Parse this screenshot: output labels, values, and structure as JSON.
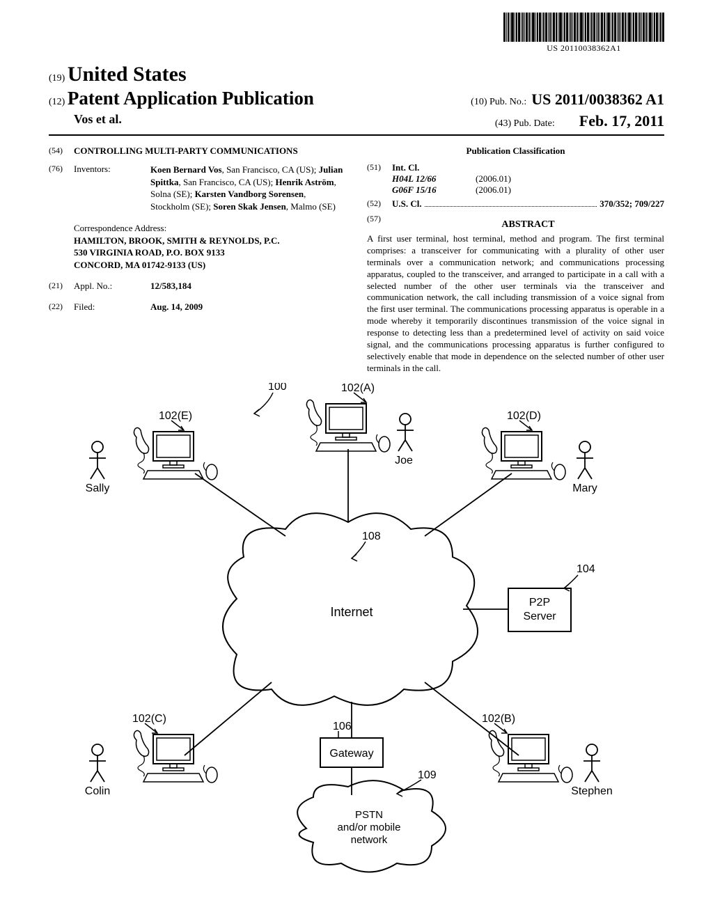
{
  "barcode_text": "US 20110038362A1",
  "country": "United States",
  "country_code": "(19)",
  "pub_type_code": "(12)",
  "pub_type": "Patent Application Publication",
  "authors": "Vos et al.",
  "pub_no_code": "(10)",
  "pub_no_label": "Pub. No.:",
  "pub_no": "US 2011/0038362 A1",
  "pub_date_code": "(43)",
  "pub_date_label": "Pub. Date:",
  "pub_date": "Feb. 17, 2011",
  "title_code": "(54)",
  "title": "CONTROLLING MULTI-PARTY COMMUNICATIONS",
  "inventors_code": "(76)",
  "inventors_label": "Inventors:",
  "inventors_html": "<b>Koen Bernard Vos</b>, San Francisco, CA (US); <b>Julian Spittka</b>, San Francisco, CA (US); <b>Henrik Aström</b>, Solna (SE); <b>Karsten Vandborg Sorensen</b>, Stockholm (SE); <b>Soren Skak Jensen</b>, Malmo (SE)",
  "corr_label": "Correspondence Address:",
  "corr_name": "HAMILTON, BROOK, SMITH & REYNOLDS, P.C.",
  "corr_addr1": "530 VIRGINIA ROAD, P.O. BOX 9133",
  "corr_addr2": "CONCORD, MA 01742-9133 (US)",
  "appl_code": "(21)",
  "appl_label": "Appl. No.:",
  "appl_no": "12/583,184",
  "filed_code": "(22)",
  "filed_label": "Filed:",
  "filed_date": "Aug. 14, 2009",
  "class_header": "Publication Classification",
  "intcl_code": "(51)",
  "intcl_label": "Int. Cl.",
  "intcl": [
    {
      "code": "H04L 12/66",
      "year": "(2006.01)"
    },
    {
      "code": "G06F 15/16",
      "year": "(2006.01)"
    }
  ],
  "uscl_code": "(52)",
  "uscl_label": "U.S. Cl.",
  "uscl_val": "370/352; 709/227",
  "abstract_code": "(57)",
  "abstract_label": "ABSTRACT",
  "abstract": "A first user terminal, host terminal, method and program. The first terminal comprises: a transceiver for communicating with a plurality of other user terminals over a communication network; and communications processing apparatus, coupled to the transceiver, and arranged to participate in a call with a selected number of the other user terminals via the transceiver and communication network, the call including transmission of a voice signal from the first user terminal. The communications processing apparatus is operable in a mode whereby it temporarily discontinues transmission of the voice signal in response to detecting less than a predetermined level of activity on said voice signal, and the communications processing apparatus is further configured to selectively enable that mode in dependence on the selected number of other user terminals in the call.",
  "figure": {
    "ref100": "100",
    "internet": "Internet",
    "p2p": "P2P\nServer",
    "gateway": "Gateway",
    "pstn": "PSTN\nand/or mobile\nnetwork",
    "ref108": "108",
    "ref104": "104",
    "ref106": "106",
    "ref109": "109",
    "terminals": {
      "A": {
        "ref": "102(A)",
        "user": "Joe"
      },
      "B": {
        "ref": "102(B)",
        "user": "Stephen"
      },
      "C": {
        "ref": "102(C)",
        "user": "Colin"
      },
      "D": {
        "ref": "102(D)",
        "user": "Mary"
      },
      "E": {
        "ref": "102(E)",
        "user": "Sally"
      }
    }
  },
  "colors": {
    "text": "#000000",
    "bg": "#ffffff",
    "line": "#000000"
  }
}
